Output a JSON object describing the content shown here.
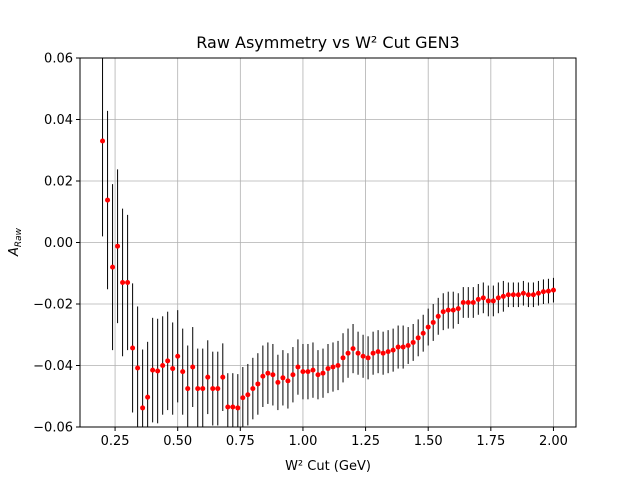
{
  "chart_data": {
    "type": "errorbar",
    "title": "Raw Asymmetry vs W² Cut GEN3",
    "xlabel": "W² Cut (GeV)",
    "ylabel": "A",
    "ylabel_subscript": "Raw",
    "color": "#ff0000",
    "error_color": "#000000",
    "grid": true,
    "x": [
      0.2,
      0.22,
      0.24,
      0.26,
      0.28,
      0.3,
      0.32,
      0.34,
      0.36,
      0.38,
      0.4,
      0.42,
      0.44,
      0.46,
      0.48,
      0.5,
      0.52,
      0.54,
      0.56,
      0.58,
      0.6,
      0.62,
      0.64,
      0.66,
      0.68,
      0.7,
      0.72,
      0.74,
      0.76,
      0.78,
      0.8,
      0.82,
      0.84,
      0.86,
      0.88,
      0.9,
      0.92,
      0.94,
      0.96,
      0.98,
      1.0,
      1.02,
      1.04,
      1.06,
      1.08,
      1.1,
      1.12,
      1.14,
      1.16,
      1.18,
      1.2,
      1.22,
      1.24,
      1.26,
      1.28,
      1.3,
      1.32,
      1.34,
      1.36,
      1.38,
      1.4,
      1.42,
      1.44,
      1.46,
      1.48,
      1.5,
      1.52,
      1.54,
      1.56,
      1.58,
      1.6,
      1.62,
      1.64,
      1.66,
      1.68,
      1.7,
      1.72,
      1.74,
      1.76,
      1.78,
      1.8,
      1.82,
      1.84,
      1.86,
      1.88,
      1.9,
      1.92,
      1.94,
      1.96,
      1.98,
      2.0
    ],
    "values": [
      0.033,
      0.0138,
      -0.008,
      -0.0012,
      -0.013,
      -0.013,
      -0.0343,
      -0.0408,
      -0.0538,
      -0.0503,
      -0.0415,
      -0.0418,
      -0.04,
      -0.0385,
      -0.041,
      -0.037,
      -0.042,
      -0.0475,
      -0.0405,
      -0.0475,
      -0.0475,
      -0.0438,
      -0.0475,
      -0.0475,
      -0.0438,
      -0.0535,
      -0.0535,
      -0.0538,
      -0.0505,
      -0.0495,
      -0.0475,
      -0.046,
      -0.0435,
      -0.0425,
      -0.043,
      -0.0455,
      -0.044,
      -0.045,
      -0.043,
      -0.0405,
      -0.042,
      -0.042,
      -0.0415,
      -0.043,
      -0.0425,
      -0.041,
      -0.0405,
      -0.04,
      -0.0375,
      -0.036,
      -0.0345,
      -0.036,
      -0.037,
      -0.0375,
      -0.036,
      -0.0355,
      -0.036,
      -0.0355,
      -0.035,
      -0.034,
      -0.034,
      -0.0335,
      -0.0325,
      -0.031,
      -0.0295,
      -0.0275,
      -0.026,
      -0.024,
      -0.0225,
      -0.022,
      -0.022,
      -0.0215,
      -0.0195,
      -0.0195,
      -0.0195,
      -0.0185,
      -0.018,
      -0.019,
      -0.019,
      -0.018,
      -0.0175,
      -0.017,
      -0.017,
      -0.017,
      -0.0165,
      -0.017,
      -0.017,
      -0.0165,
      -0.016,
      -0.0158,
      -0.0155
    ],
    "errors": [
      0.031,
      0.029,
      0.027,
      0.025,
      0.024,
      0.022,
      0.021,
      0.02,
      0.019,
      0.018,
      0.017,
      0.017,
      0.016,
      0.016,
      0.015,
      0.015,
      0.014,
      0.014,
      0.013,
      0.013,
      0.013,
      0.012,
      0.012,
      0.012,
      0.011,
      0.011,
      0.011,
      0.011,
      0.01,
      0.01,
      0.01,
      0.01,
      0.01,
      0.01,
      0.01,
      0.009,
      0.009,
      0.009,
      0.009,
      0.009,
      0.009,
      0.009,
      0.009,
      0.008,
      0.008,
      0.008,
      0.008,
      0.008,
      0.008,
      0.008,
      0.008,
      0.007,
      0.007,
      0.007,
      0.007,
      0.007,
      0.007,
      0.007,
      0.007,
      0.007,
      0.007,
      0.006,
      0.006,
      0.006,
      0.006,
      0.006,
      0.006,
      0.006,
      0.006,
      0.006,
      0.006,
      0.005,
      0.005,
      0.005,
      0.005,
      0.005,
      0.005,
      0.005,
      0.005,
      0.005,
      0.005,
      0.004,
      0.004,
      0.004,
      0.004,
      0.004,
      0.004,
      0.004,
      0.004,
      0.004,
      0.004
    ],
    "xlim": [
      0.11,
      2.09
    ],
    "ylim": [
      -0.06,
      0.06
    ],
    "xticks": [
      {
        "value": 0.25,
        "label": "0.25"
      },
      {
        "value": 0.5,
        "label": "0.50"
      },
      {
        "value": 0.75,
        "label": "0.75"
      },
      {
        "value": 1.0,
        "label": "1.00"
      },
      {
        "value": 1.25,
        "label": "1.25"
      },
      {
        "value": 1.5,
        "label": "1.50"
      },
      {
        "value": 1.75,
        "label": "1.75"
      },
      {
        "value": 2.0,
        "label": "2.00"
      }
    ],
    "yticks": [
      {
        "value": -0.06,
        "label": "−0.06"
      },
      {
        "value": -0.04,
        "label": "−0.04"
      },
      {
        "value": -0.02,
        "label": "−0.02"
      },
      {
        "value": 0.0,
        "label": "0.00"
      },
      {
        "value": 0.02,
        "label": "0.02"
      },
      {
        "value": 0.04,
        "label": "0.04"
      },
      {
        "value": 0.06,
        "label": "0.06"
      }
    ]
  }
}
